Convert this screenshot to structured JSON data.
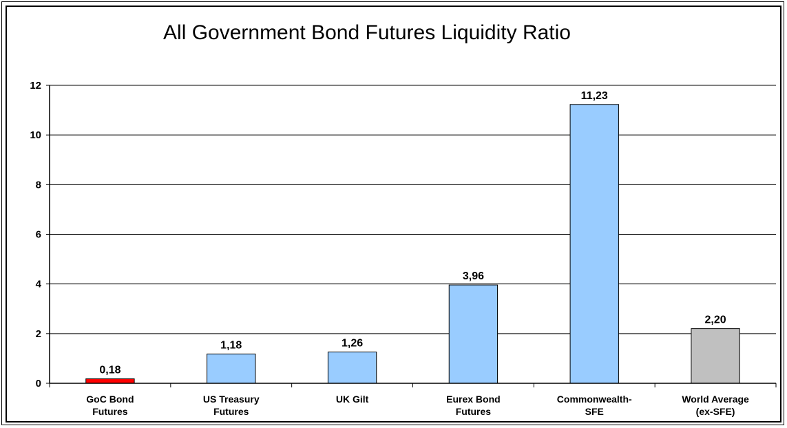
{
  "chart_data": {
    "type": "bar",
    "title": "All Government Bond Futures Liquidity Ratio",
    "categories": [
      [
        "GoC Bond",
        "Futures"
      ],
      [
        "US Treasury",
        "Futures"
      ],
      [
        "UK Gilt"
      ],
      [
        "Eurex Bond",
        "Futures"
      ],
      [
        "Commonwealth-",
        "SFE"
      ],
      [
        "World Average",
        "(ex-SFE)"
      ]
    ],
    "values": [
      0.18,
      1.18,
      1.26,
      3.96,
      11.23,
      2.2
    ],
    "data_labels": [
      "0,18",
      "1,18",
      "1,26",
      "3,96",
      "11,23",
      "2,20"
    ],
    "bar_colors": [
      "#ff0000",
      "#99ccff",
      "#99ccff",
      "#99ccff",
      "#99ccff",
      "#c0c0c0"
    ],
    "yticks": [
      0,
      2,
      4,
      6,
      8,
      10,
      12
    ],
    "ylim": [
      0,
      12
    ],
    "xlabel": "",
    "ylabel": "",
    "grid": true,
    "legend": "none"
  }
}
